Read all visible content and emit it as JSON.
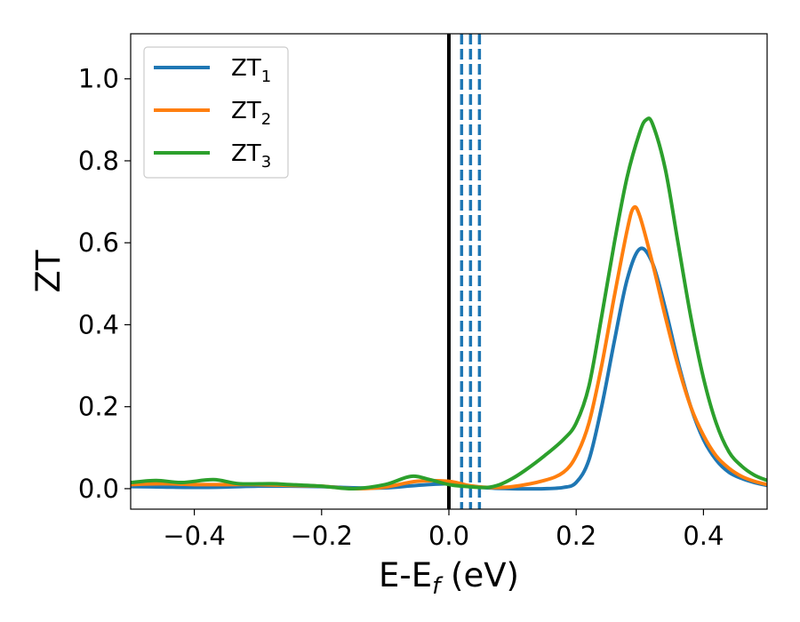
{
  "chart_data": {
    "type": "line",
    "xlabel_main": "E-E",
    "xlabel_sub": "f",
    "xlabel_unit": " (eV)",
    "ylabel": "ZT",
    "xlim": [
      -0.5,
      0.5
    ],
    "ylim": [
      -0.05,
      1.11
    ],
    "xticks": [
      -0.4,
      -0.2,
      0.0,
      0.2,
      0.4
    ],
    "xtick_labels": [
      "−0.4",
      "−0.2",
      "0.0",
      "0.2",
      "0.4"
    ],
    "yticks": [
      0.0,
      0.2,
      0.4,
      0.6,
      0.8,
      1.0
    ],
    "ytick_labels": [
      "0.0",
      "0.2",
      "0.4",
      "0.6",
      "0.8",
      "1.0"
    ],
    "grid": false,
    "legend_position": "top-left",
    "vlines": [
      {
        "x": 0.0,
        "style": "solid",
        "color": "#000000"
      },
      {
        "x": 0.02,
        "style": "dashed",
        "color": "#1f77b4"
      },
      {
        "x": 0.034,
        "style": "dashed",
        "color": "#1f77b4"
      },
      {
        "x": 0.048,
        "style": "dashed",
        "color": "#1f77b4"
      }
    ],
    "series": [
      {
        "name": "ZT",
        "name_sub": "1",
        "color": "#1f77b4",
        "x": [
          -0.5,
          -0.45,
          -0.4,
          -0.35,
          -0.3,
          -0.25,
          -0.2,
          -0.15,
          -0.1,
          -0.05,
          0.0,
          0.03,
          0.06,
          0.1,
          0.15,
          0.18,
          0.2,
          0.22,
          0.24,
          0.26,
          0.28,
          0.3,
          0.32,
          0.34,
          0.36,
          0.38,
          0.4,
          0.42,
          0.44,
          0.46,
          0.48,
          0.5
        ],
        "y": [
          0.005,
          0.004,
          0.003,
          0.004,
          0.006,
          0.006,
          0.005,
          0.002,
          0.002,
          0.008,
          0.012,
          0.007,
          0.002,
          0.0,
          0.0,
          0.003,
          0.015,
          0.07,
          0.2,
          0.36,
          0.51,
          0.585,
          0.55,
          0.44,
          0.31,
          0.2,
          0.12,
          0.07,
          0.04,
          0.025,
          0.015,
          0.008
        ]
      },
      {
        "name": "ZT",
        "name_sub": "2",
        "color": "#ff7f0e",
        "x": [
          -0.5,
          -0.45,
          -0.4,
          -0.35,
          -0.3,
          -0.25,
          -0.2,
          -0.15,
          -0.1,
          -0.05,
          0.0,
          0.03,
          0.06,
          0.1,
          0.15,
          0.18,
          0.2,
          0.22,
          0.24,
          0.26,
          0.28,
          0.29,
          0.3,
          0.32,
          0.34,
          0.36,
          0.38,
          0.4,
          0.42,
          0.44,
          0.46,
          0.48,
          0.5
        ],
        "y": [
          0.01,
          0.012,
          0.01,
          0.01,
          0.01,
          0.008,
          0.006,
          0.0,
          0.004,
          0.018,
          0.018,
          0.008,
          0.003,
          0.005,
          0.02,
          0.04,
          0.08,
          0.16,
          0.3,
          0.47,
          0.63,
          0.685,
          0.665,
          0.55,
          0.42,
          0.3,
          0.2,
          0.13,
          0.08,
          0.05,
          0.03,
          0.018,
          0.01
        ]
      },
      {
        "name": "ZT",
        "name_sub": "3",
        "color": "#2ca02c",
        "x": [
          -0.5,
          -0.46,
          -0.42,
          -0.37,
          -0.33,
          -0.28,
          -0.25,
          -0.2,
          -0.15,
          -0.1,
          -0.06,
          -0.03,
          0.0,
          0.03,
          0.06,
          0.08,
          0.1,
          0.12,
          0.15,
          0.18,
          0.2,
          0.22,
          0.24,
          0.26,
          0.28,
          0.3,
          0.31,
          0.32,
          0.34,
          0.36,
          0.38,
          0.4,
          0.42,
          0.44,
          0.46,
          0.48,
          0.5
        ],
        "y": [
          0.015,
          0.02,
          0.015,
          0.022,
          0.012,
          0.012,
          0.01,
          0.006,
          0.0,
          0.01,
          0.03,
          0.022,
          0.01,
          0.005,
          0.003,
          0.01,
          0.025,
          0.045,
          0.08,
          0.12,
          0.16,
          0.25,
          0.42,
          0.6,
          0.76,
          0.87,
          0.9,
          0.89,
          0.78,
          0.6,
          0.42,
          0.27,
          0.16,
          0.09,
          0.055,
          0.033,
          0.02
        ]
      }
    ]
  }
}
